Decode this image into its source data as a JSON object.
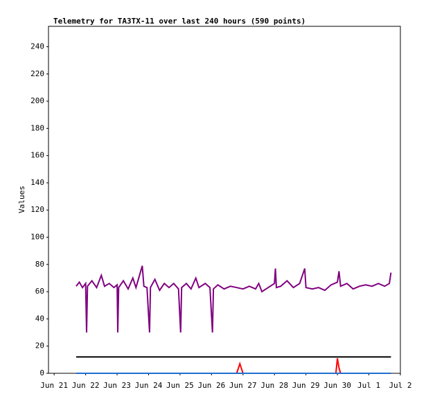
{
  "chart_data": {
    "type": "line",
    "title": "Telemetry for TA3TX-11 over last 240 hours (590 points)",
    "ylabel": "Values",
    "ylim": [
      0,
      255
    ],
    "yticks": [
      0,
      20,
      40,
      60,
      80,
      100,
      120,
      140,
      160,
      180,
      200,
      220,
      240
    ],
    "xlim": [
      -0.18,
      11
    ],
    "xticks": [
      {
        "value": 0,
        "label": "Jun 21"
      },
      {
        "value": 1,
        "label": "Jun 22"
      },
      {
        "value": 2,
        "label": "Jun 23"
      },
      {
        "value": 3,
        "label": "Jun 24"
      },
      {
        "value": 4,
        "label": "Jun 25"
      },
      {
        "value": 5,
        "label": "Jun 26"
      },
      {
        "value": 6,
        "label": "Jun 27"
      },
      {
        "value": 7,
        "label": "Jun 28"
      },
      {
        "value": 8,
        "label": "Jun 29"
      },
      {
        "value": 9,
        "label": "Jun 30"
      },
      {
        "value": 10,
        "label": "Jul 1"
      },
      {
        "value": 11,
        "label": "Jul 2"
      }
    ],
    "series": [
      {
        "color": "#800080",
        "x": [
          0.7,
          0.8,
          0.9,
          1.0,
          1.03,
          1.06,
          1.2,
          1.35,
          1.5,
          1.6,
          1.75,
          1.9,
          2.0,
          2.02,
          2.05,
          2.2,
          2.35,
          2.5,
          2.6,
          2.8,
          2.85,
          2.95,
          3.03,
          3.06,
          3.2,
          3.35,
          3.5,
          3.65,
          3.8,
          3.95,
          4.02,
          4.05,
          4.2,
          4.35,
          4.5,
          4.6,
          4.8,
          4.95,
          5.03,
          5.06,
          5.2,
          5.4,
          5.6,
          5.8,
          6.0,
          6.2,
          6.4,
          6.5,
          6.6,
          6.8,
          7.0,
          7.03,
          7.06,
          7.2,
          7.4,
          7.6,
          7.8,
          7.96,
          8.0,
          8.2,
          8.4,
          8.6,
          8.8,
          9.0,
          9.05,
          9.1,
          9.3,
          9.5,
          9.7,
          9.9,
          10.1,
          10.3,
          10.5,
          10.65,
          10.7
        ],
        "values": [
          64,
          67,
          63,
          66,
          30,
          64,
          68,
          63,
          72,
          64,
          66,
          63,
          65,
          30,
          63,
          68,
          62,
          70,
          63,
          79,
          64,
          63,
          30,
          63,
          69,
          61,
          66,
          63,
          66,
          62,
          30,
          63,
          66,
          62,
          70,
          63,
          66,
          63,
          30,
          62,
          65,
          62,
          64,
          63,
          62,
          64,
          62,
          66,
          60,
          63,
          66,
          77,
          63,
          64,
          68,
          63,
          66,
          77,
          63,
          62,
          63,
          61,
          65,
          67,
          75,
          64,
          66,
          62,
          64,
          65,
          64,
          66,
          64,
          66,
          74
        ]
      },
      {
        "color": "#000000",
        "x": [
          0.7,
          10.7
        ],
        "values": [
          12,
          12
        ]
      },
      {
        "color": "#ff0000",
        "x": [
          0.7,
          5.8,
          5.9,
          6.0,
          8.95,
          9.0,
          9.05,
          9.1,
          10.7
        ],
        "values": [
          0,
          0,
          7,
          0,
          0,
          11,
          4,
          0,
          0
        ]
      },
      {
        "color": "#1f6fd0",
        "x": [
          0.7,
          10.7
        ],
        "values": [
          0,
          0
        ]
      }
    ]
  }
}
